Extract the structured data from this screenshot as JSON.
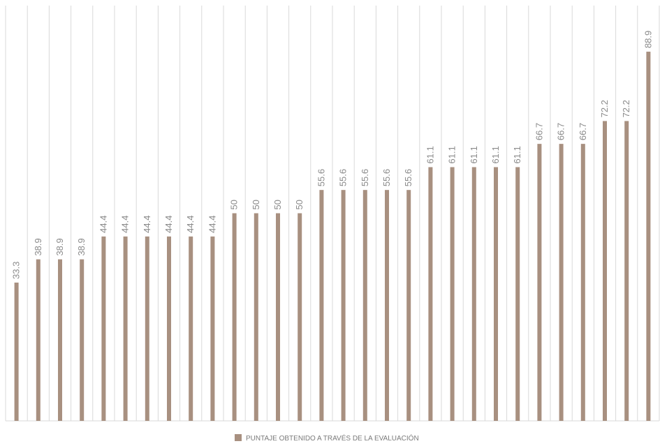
{
  "chart_data": {
    "type": "bar",
    "categories": [
      null,
      null,
      null,
      null,
      null,
      null,
      null,
      null,
      null,
      null,
      null,
      null,
      null,
      null,
      null,
      null,
      null,
      null,
      null,
      null,
      null,
      null,
      null,
      null,
      null,
      null,
      null,
      null,
      null,
      null
    ],
    "series": [
      {
        "name": "PUNTAJE OBTENIDO A TRAVÉS DE LA EVALUACIÓN",
        "color": "#a89080",
        "values": [
          33.3,
          38.9,
          38.9,
          38.9,
          44.4,
          44.4,
          44.4,
          44.4,
          44.4,
          44.4,
          50,
          50,
          50,
          50,
          55.6,
          55.6,
          55.6,
          55.6,
          55.6,
          61.1,
          61.1,
          61.1,
          61.1,
          61.1,
          66.7,
          66.7,
          66.7,
          72.2,
          72.2,
          88.9
        ]
      }
    ],
    "ylim": [
      0,
      100
    ],
    "grid": true,
    "legend": "bottom",
    "data_labels": true
  }
}
